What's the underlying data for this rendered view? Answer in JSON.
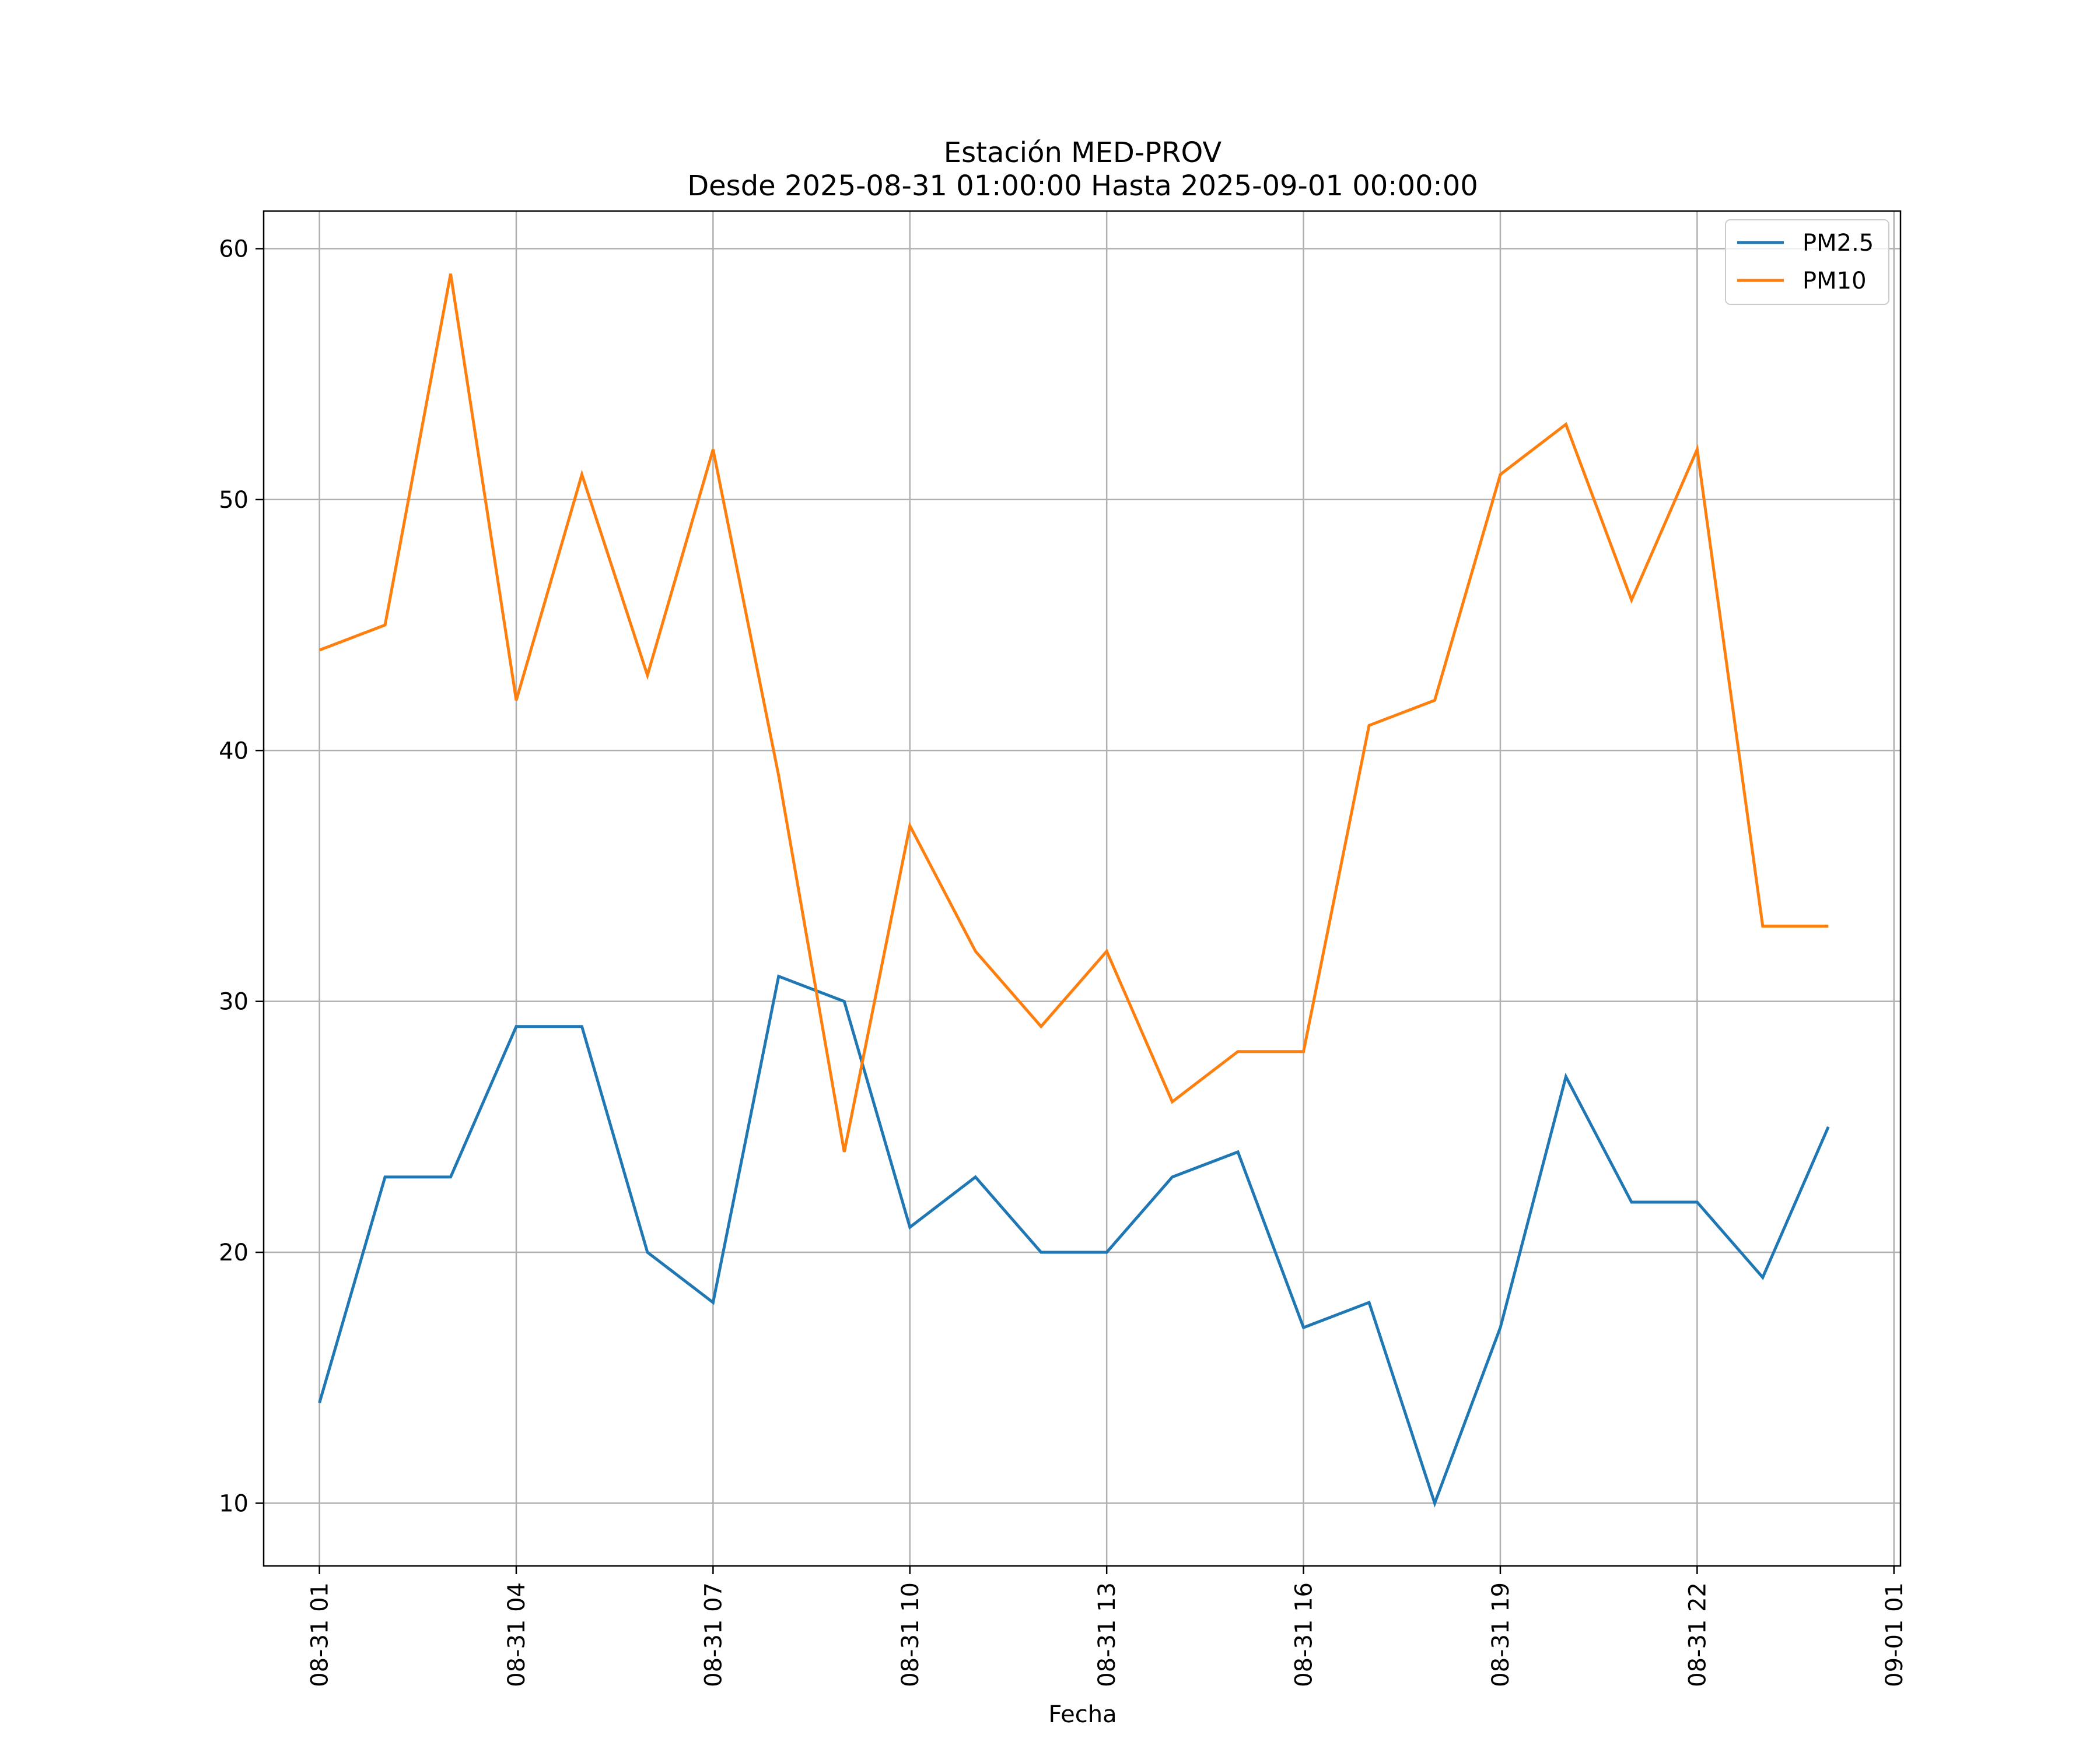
{
  "chart_data": {
    "type": "line",
    "title_line1": "Estación MED-PROV",
    "title_line2": "Desde 2025-08-31 01:00:00 Hasta 2025-09-01 00:00:00",
    "xlabel": "Fecha",
    "ylabel": "",
    "x_hours": [
      1,
      2,
      3,
      4,
      5,
      6,
      7,
      8,
      9,
      10,
      11,
      12,
      13,
      14,
      15,
      16,
      17,
      18,
      19,
      20,
      21,
      22,
      23,
      24
    ],
    "xlim": [
      0.15,
      25.1
    ],
    "ylim": [
      7.5,
      61.5
    ],
    "x_ticks": [
      {
        "hour": 1,
        "label": "08-31 01"
      },
      {
        "hour": 4,
        "label": "08-31 04"
      },
      {
        "hour": 7,
        "label": "08-31 07"
      },
      {
        "hour": 10,
        "label": "08-31 10"
      },
      {
        "hour": 13,
        "label": "08-31 13"
      },
      {
        "hour": 16,
        "label": "08-31 16"
      },
      {
        "hour": 19,
        "label": "08-31 19"
      },
      {
        "hour": 22,
        "label": "08-31 22"
      },
      {
        "hour": 25,
        "label": "09-01 01"
      }
    ],
    "y_ticks": [
      10,
      20,
      30,
      40,
      50,
      60
    ],
    "grid": true,
    "legend_position": "top-right",
    "series": [
      {
        "name": "PM2.5",
        "color": "#1f77b4",
        "values": [
          14,
          23,
          23,
          29,
          29,
          20,
          18,
          31,
          30,
          21,
          23,
          20,
          20,
          23,
          24,
          17,
          18,
          10,
          17,
          27,
          22,
          22,
          19,
          25
        ]
      },
      {
        "name": "PM10",
        "color": "#ff7f0e",
        "values": [
          44,
          45,
          59,
          42,
          51,
          43,
          52,
          39,
          24,
          37,
          32,
          29,
          32,
          26,
          28,
          28,
          41,
          42,
          51,
          53,
          46,
          52,
          33,
          33
        ]
      }
    ]
  }
}
